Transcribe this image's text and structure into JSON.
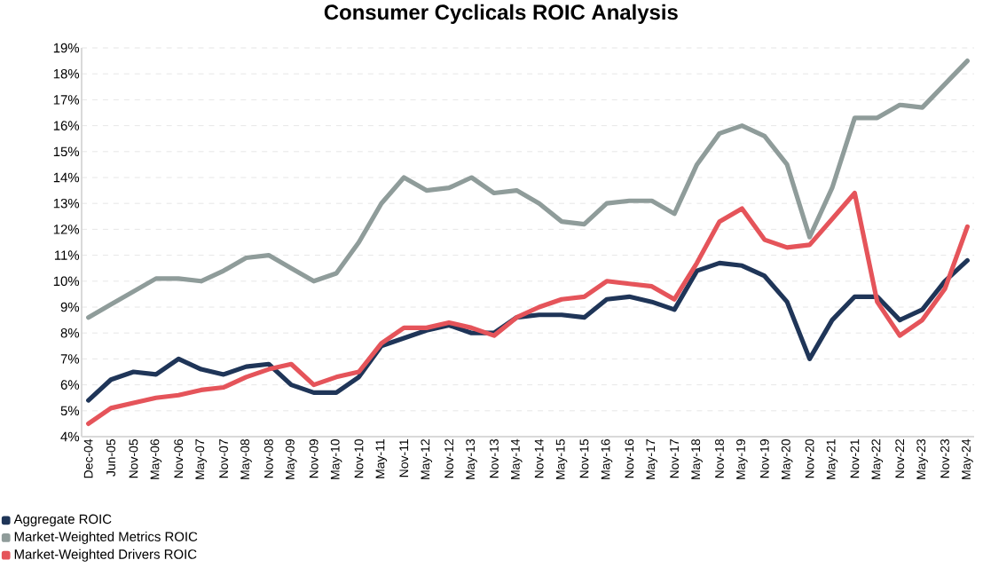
{
  "chart_data": {
    "type": "line",
    "title": "Consumer Cyclicals ROIC Analysis",
    "categories": [
      "Dec-04",
      "Jun-05",
      "Nov-05",
      "May-06",
      "Nov-06",
      "May-07",
      "Nov-07",
      "May-08",
      "Nov-08",
      "May-09",
      "Nov-09",
      "May-10",
      "Nov-10",
      "May-11",
      "Nov-11",
      "May-12",
      "Nov-12",
      "May-13",
      "Nov-13",
      "May-14",
      "Nov-14",
      "May-15",
      "Nov-15",
      "May-16",
      "Nov-16",
      "May-17",
      "Nov-17",
      "May-18",
      "Nov-18",
      "May-19",
      "Nov-19",
      "May-20",
      "Nov-20",
      "May-21",
      "Nov-21",
      "May-22",
      "Nov-22",
      "May-23",
      "Nov-23",
      "May-24"
    ],
    "series": [
      {
        "name": "Aggregate ROIC",
        "color": "#1f3558",
        "values": [
          5.4,
          6.2,
          6.5,
          6.4,
          7.0,
          6.6,
          6.4,
          6.7,
          6.8,
          6.0,
          5.7,
          5.7,
          6.3,
          7.5,
          7.8,
          8.1,
          8.3,
          8.0,
          8.0,
          8.6,
          8.7,
          8.7,
          8.6,
          9.3,
          9.4,
          9.2,
          8.9,
          10.4,
          10.7,
          10.6,
          10.2,
          9.2,
          7.0,
          8.5,
          9.4,
          9.4,
          8.5,
          8.9,
          10.0,
          10.8
        ]
      },
      {
        "name": "Market-Weighted Metrics ROIC",
        "color": "#8f9c9a",
        "values": [
          8.6,
          9.1,
          9.6,
          10.1,
          10.1,
          10.0,
          10.4,
          10.9,
          11.0,
          10.5,
          10.0,
          10.3,
          11.5,
          13.0,
          14.0,
          13.5,
          13.6,
          14.0,
          13.4,
          13.5,
          13.0,
          12.3,
          12.2,
          13.0,
          13.1,
          13.1,
          12.6,
          14.5,
          15.7,
          16.0,
          15.6,
          14.5,
          11.7,
          13.6,
          16.3,
          16.3,
          16.8,
          16.7,
          17.6,
          18.5
        ]
      },
      {
        "name": "Market-Weighted Drivers ROIC",
        "color": "#e5545a",
        "values": [
          4.5,
          5.1,
          5.3,
          5.5,
          5.6,
          5.8,
          5.9,
          6.3,
          6.6,
          6.8,
          6.0,
          6.3,
          6.5,
          7.6,
          8.2,
          8.2,
          8.4,
          8.2,
          7.9,
          8.6,
          9.0,
          9.3,
          9.4,
          10.0,
          9.9,
          9.8,
          9.3,
          10.7,
          12.3,
          12.8,
          11.6,
          11.3,
          11.4,
          12.4,
          13.4,
          9.2,
          7.9,
          8.5,
          9.7,
          12.1
        ]
      }
    ],
    "ylim": [
      4,
      19
    ],
    "yticks": [
      {
        "value": 4,
        "label": "4%"
      },
      {
        "value": 5,
        "label": "5%"
      },
      {
        "value": 6,
        "label": "6%"
      },
      {
        "value": 7,
        "label": "7%"
      },
      {
        "value": 8,
        "label": "8%"
      },
      {
        "value": 9,
        "label": "9%"
      },
      {
        "value": 10,
        "label": "10%"
      },
      {
        "value": 11,
        "label": "11%"
      },
      {
        "value": 12,
        "label": "12%"
      },
      {
        "value": 13,
        "label": "13%"
      },
      {
        "value": 14,
        "label": "14%"
      },
      {
        "value": 15,
        "label": "15%"
      },
      {
        "value": 16,
        "label": "16%"
      },
      {
        "value": 17,
        "label": "17%"
      },
      {
        "value": 18,
        "label": "18%"
      },
      {
        "value": 19,
        "label": "19%"
      }
    ],
    "grid": "y",
    "legend": "bottom left",
    "marker": "none",
    "line_style": "solid"
  }
}
